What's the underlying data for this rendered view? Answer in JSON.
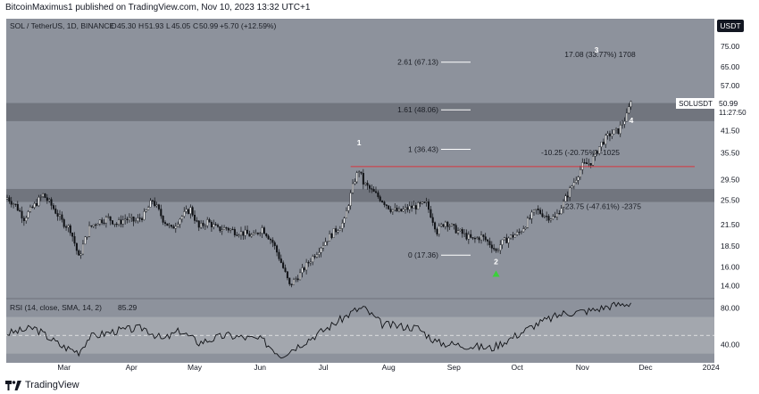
{
  "header": {
    "publisher_text": "BitcoinMaximus1 published on TradingView.com, Nov 10, 2023 13:32 UTC+1"
  },
  "legend": {
    "symbol_text": "SOL / TetherUS, 1D, BINANCE",
    "o_label": "O",
    "o_value": "45.30",
    "h_label": "H",
    "h_value": "51.93",
    "l_label": "L",
    "l_value": "45.05",
    "c_label": "C",
    "c_value": "50.99",
    "change": "+5.70 (+12.59%)"
  },
  "currency_badge": "USDT",
  "price_tag": {
    "symbol": "SOLUSDT",
    "price": "50.99",
    "countdown": "11:27:50"
  },
  "footer": {
    "brand": "TradingView"
  },
  "chart_data": [
    {
      "type": "candlestick",
      "title": "SOL / TetherUS, 1D, BINANCE",
      "scale": "log",
      "ylim": [
        12.8,
        91
      ],
      "x_ticks": [
        "Mar",
        "Apr",
        "May",
        "Jun",
        "Jul",
        "Aug",
        "Sep",
        "Oct",
        "Nov",
        "Dec",
        "2024"
      ],
      "y_ticks": [
        "75.00",
        "65.00",
        "57.00",
        "50.99",
        "41.50",
        "35.50",
        "29.50",
        "25.50",
        "21.50",
        "18.50",
        "16.00",
        "14.00"
      ],
      "close_path_points": [
        [
          0,
          26.0
        ],
        [
          4,
          24.6
        ],
        [
          8,
          22.5
        ],
        [
          13,
          24.6
        ],
        [
          17,
          26.5
        ],
        [
          21,
          24.6
        ],
        [
          26,
          22.0
        ],
        [
          30,
          20.8
        ],
        [
          34,
          17.0
        ],
        [
          39,
          21.0
        ],
        [
          43,
          22.0
        ],
        [
          48,
          22.5
        ],
        [
          52,
          21.6
        ],
        [
          56,
          22.4
        ],
        [
          61,
          22.0
        ],
        [
          65,
          23.0
        ],
        [
          69,
          25.5
        ],
        [
          74,
          22.3
        ],
        [
          78,
          20.8
        ],
        [
          82,
          22.5
        ],
        [
          87,
          24.0
        ],
        [
          91,
          21.0
        ],
        [
          95,
          22.0
        ],
        [
          100,
          20.8
        ],
        [
          104,
          21.0
        ],
        [
          108,
          20.5
        ],
        [
          113,
          20.2
        ],
        [
          117,
          19.8
        ],
        [
          121,
          21.0
        ],
        [
          126,
          19.0
        ],
        [
          130,
          16.5
        ],
        [
          134,
          14.0
        ],
        [
          139,
          15.2
        ],
        [
          143,
          16.5
        ],
        [
          147,
          17.8
        ],
        [
          152,
          19.5
        ],
        [
          156,
          20.7
        ],
        [
          160,
          22.0
        ],
        [
          165,
          29.5
        ],
        [
          167,
          31.5
        ],
        [
          169,
          28.8
        ],
        [
          173,
          27.2
        ],
        [
          178,
          25.5
        ],
        [
          182,
          24.0
        ],
        [
          186,
          23.5
        ],
        [
          191,
          24.2
        ],
        [
          195,
          24.5
        ],
        [
          199,
          24.8
        ],
        [
          204,
          20.5
        ],
        [
          208,
          22.0
        ],
        [
          212,
          20.9
        ],
        [
          217,
          20.0
        ],
        [
          221,
          19.3
        ],
        [
          225,
          19.8
        ],
        [
          230,
          18.6
        ],
        [
          232,
          17.8
        ],
        [
          234,
          18.7
        ],
        [
          238,
          19.6
        ],
        [
          243,
          20.3
        ],
        [
          247,
          22.0
        ],
        [
          251,
          23.8
        ],
        [
          256,
          22.8
        ],
        [
          260,
          22.5
        ],
        [
          264,
          25.0
        ],
        [
          269,
          29.0
        ],
        [
          273,
          32.5
        ],
        [
          277,
          33.3
        ],
        [
          282,
          38.0
        ],
        [
          286,
          40.5
        ],
        [
          290,
          41.5
        ],
        [
          294,
          46.0
        ],
        [
          296,
          50.99
        ]
      ],
      "pattern_labels": [
        "1",
        "2",
        "3",
        "4"
      ],
      "resistance_line": {
        "price": 32.3,
        "color": "#d9363e"
      },
      "support_zones": [
        [
          44.4,
          50.4
        ],
        [
          25.2,
          27.6
        ]
      ],
      "fib_levels": [
        {
          "label": "2.61 (67.13)",
          "price": 67.13
        },
        {
          "label": "1.61 (48.06)",
          "price": 48.06
        },
        {
          "label": "1 (36.43)",
          "price": 36.43
        },
        {
          "label": "0 (17.36)",
          "price": 17.36
        }
      ],
      "measure_labels": [
        {
          "text": "17.08 (33.77%) 1708",
          "price": 69.5
        },
        {
          "text": "-10.25 (-20.75%) -1025",
          "price": 35.0
        },
        {
          "text": "-23.75 (-47.61%) -2375",
          "price": 24.0
        }
      ],
      "signal_marker": {
        "color": "#3ad13a",
        "day": 232,
        "price": 15.2
      }
    },
    {
      "type": "line",
      "title": "RSI (14, close, SMA, 14, 2)",
      "last_value": "85.29",
      "ylim": [
        20,
        90
      ],
      "y_ticks": [
        "80.00",
        "40.00"
      ],
      "overbought": 70,
      "oversold": 30,
      "midline": 50,
      "points": [
        [
          0,
          52
        ],
        [
          13,
          58
        ],
        [
          26,
          38
        ],
        [
          34,
          32
        ],
        [
          39,
          48
        ],
        [
          52,
          55
        ],
        [
          65,
          58
        ],
        [
          74,
          45
        ],
        [
          82,
          55
        ],
        [
          91,
          42
        ],
        [
          104,
          50
        ],
        [
          121,
          45
        ],
        [
          130,
          28
        ],
        [
          139,
          40
        ],
        [
          152,
          58
        ],
        [
          165,
          77
        ],
        [
          169,
          80
        ],
        [
          178,
          62
        ],
        [
          195,
          58
        ],
        [
          204,
          42
        ],
        [
          221,
          38
        ],
        [
          230,
          36
        ],
        [
          240,
          48
        ],
        [
          251,
          62
        ],
        [
          264,
          74
        ],
        [
          277,
          77
        ],
        [
          286,
          82
        ],
        [
          296,
          85.29
        ]
      ]
    }
  ]
}
